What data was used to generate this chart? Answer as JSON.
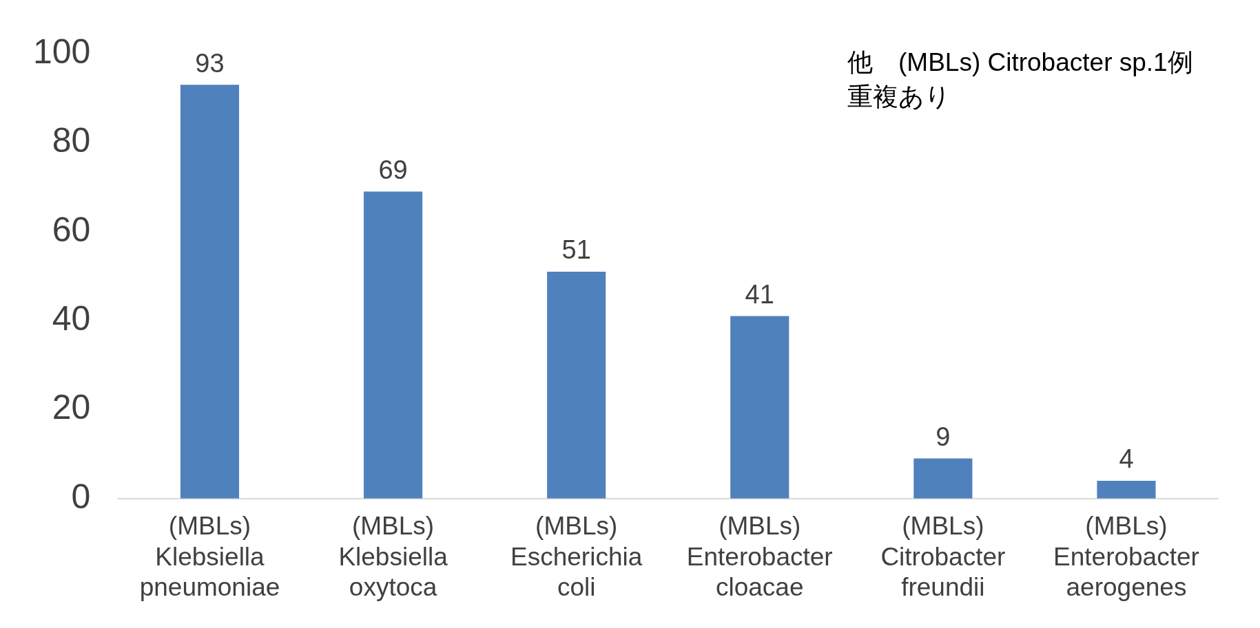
{
  "chart_data": {
    "type": "bar",
    "categories": [
      "(MBLs)\nKlebsiella\npneumoniae",
      "(MBLs)\nKlebsiella\noxytoca",
      "(MBLs)\nEscherichia\ncoli",
      "(MBLs)\nEnterobacter\ncloacae",
      "(MBLs)\nCitrobacter\nfreundii",
      "(MBLs)\nEnterobacter\naerogenes"
    ],
    "values": [
      93,
      69,
      51,
      41,
      9,
      4
    ],
    "color": "#4f81bd",
    "ylim": [
      0,
      100
    ],
    "yticks": [
      0,
      20,
      40,
      60,
      80,
      100
    ],
    "grid": false,
    "legend": false,
    "data_labels": true,
    "annotations": [
      "他　(MBLs) Citrobacter sp.1例",
      "重複あり"
    ]
  }
}
